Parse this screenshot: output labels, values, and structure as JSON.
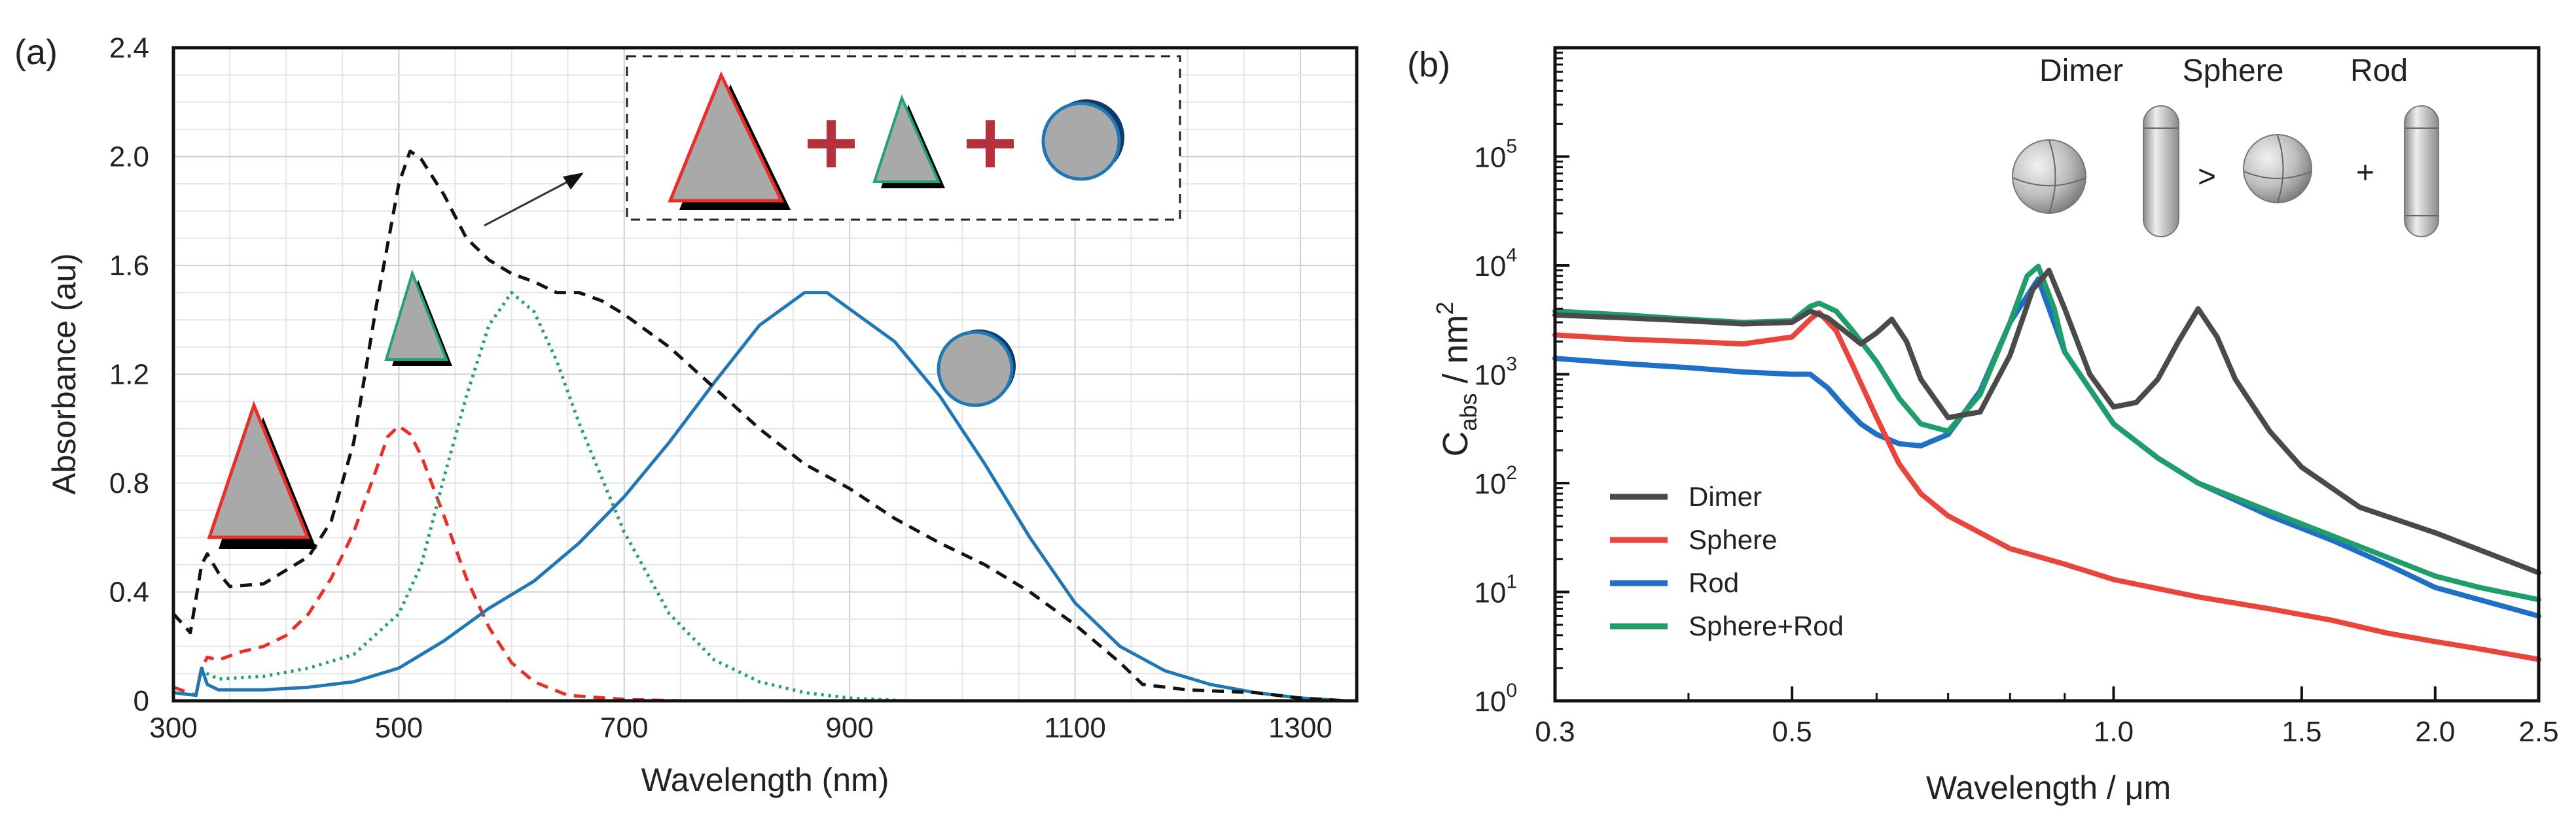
{
  "chart_data": [
    {
      "type": "line",
      "panel_label": "(a)",
      "xlabel": "Wavelength (nm)",
      "ylabel": "Absorbance (au)",
      "xlim": [
        300,
        1350
      ],
      "ylim": [
        0,
        2.4
      ],
      "x_ticks": [
        "300",
        "500",
        "700",
        "900",
        "1100",
        "1300"
      ],
      "y_ticks": [
        "0",
        "0.4",
        "0.8",
        "1.2",
        "1.6",
        "2.0",
        "2.4"
      ],
      "grid": true,
      "series": [
        {
          "name": "large triangle",
          "color": "#e8302b",
          "style": "dashed",
          "x": [
            300,
            320,
            325,
            330,
            340,
            360,
            380,
            400,
            420,
            440,
            460,
            480,
            490,
            500,
            510,
            520,
            540,
            560,
            580,
            600,
            620,
            650,
            700,
            750
          ],
          "y": [
            0.05,
            0.02,
            0.12,
            0.16,
            0.15,
            0.18,
            0.2,
            0.24,
            0.32,
            0.45,
            0.62,
            0.85,
            0.97,
            1.01,
            0.98,
            0.9,
            0.68,
            0.45,
            0.27,
            0.14,
            0.07,
            0.02,
            0.005,
            0
          ]
        },
        {
          "name": "small triangle",
          "color": "#22a36e",
          "style": "dotted",
          "x": [
            300,
            320,
            325,
            330,
            340,
            380,
            420,
            460,
            500,
            520,
            540,
            560,
            580,
            600,
            620,
            640,
            660,
            700,
            740,
            780,
            820,
            860,
            900,
            950
          ],
          "y": [
            0.03,
            0.02,
            0.12,
            0.1,
            0.08,
            0.09,
            0.12,
            0.17,
            0.32,
            0.5,
            0.82,
            1.12,
            1.38,
            1.5,
            1.43,
            1.25,
            1.02,
            0.62,
            0.32,
            0.15,
            0.07,
            0.03,
            0.01,
            0
          ]
        },
        {
          "name": "sphere",
          "color": "#1f78b4",
          "style": "solid",
          "x": [
            300,
            320,
            325,
            330,
            340,
            380,
            420,
            460,
            500,
            540,
            580,
            620,
            660,
            700,
            740,
            780,
            820,
            860,
            880,
            900,
            940,
            980,
            1020,
            1060,
            1100,
            1140,
            1180,
            1220,
            1260,
            1300,
            1340
          ],
          "y": [
            0.03,
            0.02,
            0.12,
            0.06,
            0.04,
            0.04,
            0.05,
            0.07,
            0.12,
            0.22,
            0.34,
            0.44,
            0.58,
            0.75,
            0.95,
            1.17,
            1.38,
            1.5,
            1.5,
            1.44,
            1.32,
            1.12,
            0.87,
            0.6,
            0.36,
            0.2,
            0.11,
            0.06,
            0.03,
            0.01,
            0
          ]
        },
        {
          "name": "mixture",
          "color": "#111111",
          "style": "dashed",
          "x": [
            300,
            315,
            325,
            330,
            340,
            350,
            380,
            420,
            440,
            460,
            480,
            500,
            510,
            520,
            540,
            560,
            580,
            600,
            620,
            640,
            660,
            680,
            700,
            740,
            780,
            820,
            860,
            900,
            940,
            980,
            1020,
            1060,
            1100,
            1140,
            1160,
            1200,
            1260,
            1300,
            1340
          ],
          "y": [
            0.32,
            0.25,
            0.5,
            0.54,
            0.47,
            0.42,
            0.43,
            0.53,
            0.66,
            0.95,
            1.45,
            1.9,
            2.02,
            1.99,
            1.86,
            1.7,
            1.62,
            1.57,
            1.54,
            1.5,
            1.5,
            1.47,
            1.42,
            1.3,
            1.15,
            1.0,
            0.87,
            0.78,
            0.67,
            0.58,
            0.5,
            0.4,
            0.28,
            0.14,
            0.06,
            0.04,
            0.03,
            0.01,
            0
          ]
        }
      ],
      "inset_label_shapes": [
        "triangle",
        "+",
        "triangle",
        "+",
        "sphere"
      ]
    },
    {
      "type": "line",
      "panel_label": "(b)",
      "xlabel": "Wavelength / μm",
      "ylabel": "C_abs / nm^2",
      "xscale": "log",
      "yscale": "log",
      "xlim": [
        0.3,
        2.5
      ],
      "ylim": [
        1,
        1000000
      ],
      "x_ticks": [
        "0.3",
        "0.5",
        "1.0",
        "1.5",
        "2.0",
        "2.5"
      ],
      "y_ticks": [
        "10",
        "10",
        "10",
        "10",
        "10",
        "10"
      ],
      "y_tick_exponents": [
        "0",
        "1",
        "2",
        "3",
        "4",
        "5"
      ],
      "ylabel_main": "C",
      "ylabel_sub": "abs",
      "ylabel_rest": " / nm",
      "ylabel_sup": "2",
      "xlabel_text": "Wavelength / ",
      "xlabel_unit": "μm",
      "legend_position": "lower-left",
      "inset_labels": [
        "Dimer",
        "Sphere",
        "Rod"
      ],
      "inset_operators": [
        ">",
        "+"
      ],
      "series": [
        {
          "name": "Dimer",
          "color": "#4a4a4a",
          "x": [
            0.3,
            0.35,
            0.4,
            0.45,
            0.5,
            0.52,
            0.54,
            0.56,
            0.58,
            0.6,
            0.62,
            0.64,
            0.66,
            0.7,
            0.75,
            0.8,
            0.84,
            0.87,
            0.9,
            0.95,
            1.0,
            1.05,
            1.1,
            1.15,
            1.2,
            1.25,
            1.3,
            1.4,
            1.5,
            1.7,
            2.0,
            2.5
          ],
          "y": [
            3500,
            3300,
            3100,
            2900,
            3000,
            3800,
            3300,
            2500,
            1900,
            2400,
            3200,
            2000,
            900,
            400,
            450,
            1500,
            6000,
            9000,
            4000,
            1000,
            500,
            550,
            900,
            2000,
            4000,
            2200,
            900,
            300,
            140,
            60,
            35,
            15
          ]
        },
        {
          "name": "Sphere",
          "color": "#e8453c",
          "x": [
            0.3,
            0.35,
            0.4,
            0.45,
            0.5,
            0.52,
            0.53,
            0.55,
            0.57,
            0.6,
            0.63,
            0.66,
            0.7,
            0.75,
            0.8,
            0.9,
            1.0,
            1.2,
            1.4,
            1.6,
            1.8,
            2.0,
            2.2,
            2.5
          ],
          "y": [
            2300,
            2100,
            2000,
            1900,
            2200,
            3200,
            3700,
            2500,
            1200,
            400,
            150,
            80,
            50,
            35,
            25,
            18,
            13,
            9,
            7,
            5.5,
            4.2,
            3.5,
            3,
            2.4
          ]
        },
        {
          "name": "Rod",
          "color": "#1f6fc6",
          "x": [
            0.3,
            0.35,
            0.4,
            0.45,
            0.5,
            0.52,
            0.54,
            0.56,
            0.58,
            0.6,
            0.63,
            0.66,
            0.7,
            0.75,
            0.8,
            0.85,
            0.9,
            1.0,
            1.1,
            1.2,
            1.4,
            1.6,
            1.8,
            2.0,
            2.2,
            2.5
          ],
          "y": [
            1400,
            1250,
            1150,
            1050,
            1000,
            1000,
            750,
            500,
            350,
            280,
            230,
            220,
            280,
            700,
            3000,
            7500,
            1600,
            350,
            170,
            100,
            50,
            30,
            18,
            11,
            8.5,
            6
          ]
        },
        {
          "name": "Sphere+Rod",
          "color": "#1f9e6a",
          "x": [
            0.3,
            0.35,
            0.4,
            0.45,
            0.5,
            0.52,
            0.53,
            0.55,
            0.57,
            0.6,
            0.63,
            0.66,
            0.7,
            0.75,
            0.8,
            0.83,
            0.85,
            0.88,
            0.9,
            1.0,
            1.1,
            1.2,
            1.4,
            1.6,
            1.8,
            2.0,
            2.2,
            2.5
          ],
          "y": [
            3800,
            3500,
            3200,
            3000,
            3100,
            4200,
            4500,
            3800,
            2500,
            1300,
            600,
            350,
            300,
            650,
            3000,
            8000,
            9800,
            4000,
            1600,
            350,
            170,
            100,
            55,
            33,
            21,
            14,
            11,
            8.5
          ]
        }
      ]
    }
  ],
  "colors": {
    "triangle_fill": "#a9a9a9",
    "large_triangle_edge": "#e8302b",
    "small_triangle_edge": "#22a36e",
    "sphere_edge": "#1f78b4",
    "plus": "#b5313e"
  }
}
